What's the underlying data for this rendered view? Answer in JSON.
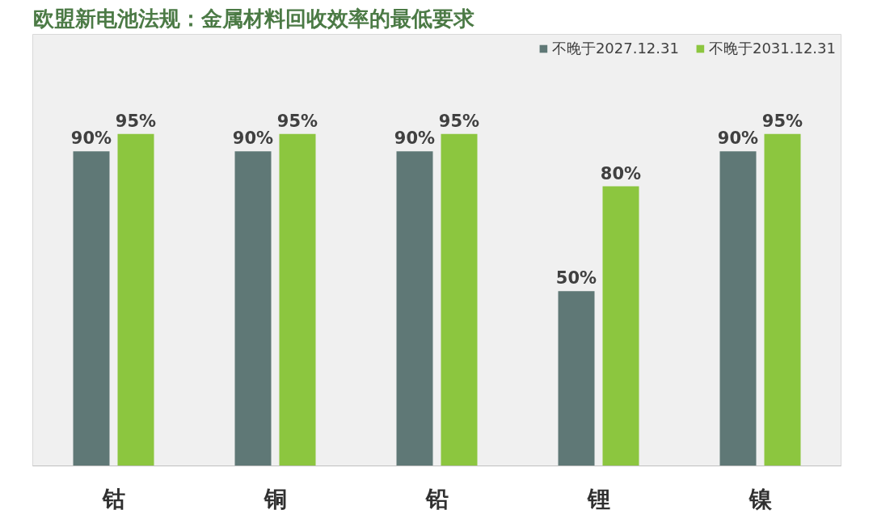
{
  "chart_data": {
    "type": "bar",
    "title": "欧盟新电池法规：金属材料回收效率的最低要求",
    "categories": [
      "钴",
      "铜",
      "铅",
      "锂",
      "镍"
    ],
    "series": [
      {
        "name": "不晚于2027.12.31",
        "color": "#5f7876",
        "values": [
          90,
          90,
          90,
          50,
          90
        ],
        "value_labels": [
          "90%",
          "90%",
          "90%",
          "50%",
          "90%"
        ]
      },
      {
        "name": "不晚于2031.12.31",
        "color": "#8cc63f",
        "values": [
          95,
          95,
          95,
          80,
          95
        ],
        "value_labels": [
          "95%",
          "95%",
          "95%",
          "80%",
          "95%"
        ]
      }
    ],
    "legend": "top right",
    "grid": false,
    "tick_labels": "x"
  }
}
